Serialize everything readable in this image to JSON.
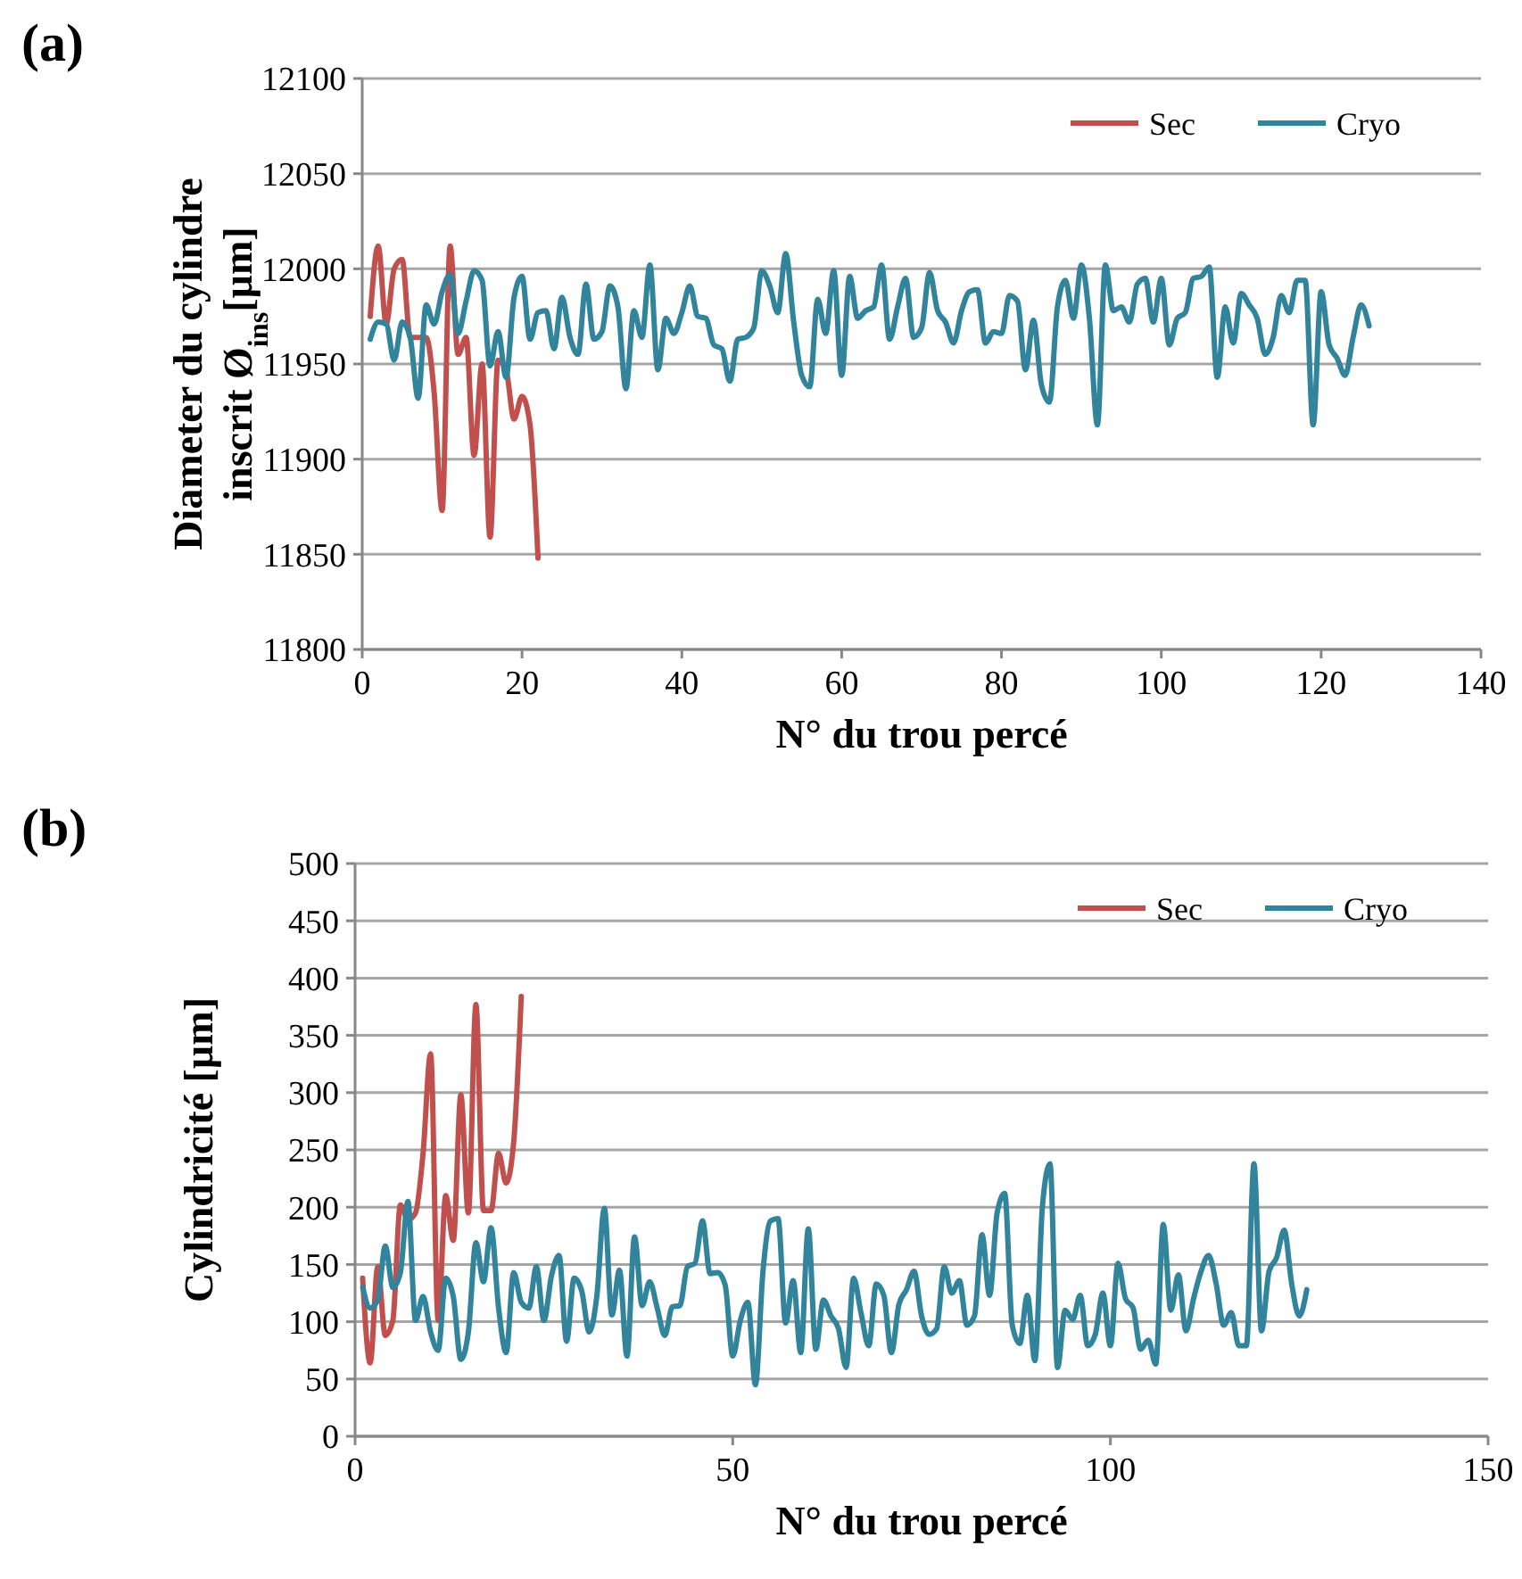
{
  "chart_data": [
    {
      "type": "line",
      "title": "(a)",
      "xlabel": "N° du trou percé",
      "ylabel": "Diameter du cylindre\ninscrit Ø$_{ins}$[µm]",
      "xlim": [
        0,
        140
      ],
      "xticks": [
        0,
        20,
        40,
        60,
        80,
        100,
        120,
        140
      ],
      "ylim": [
        11800,
        12100
      ],
      "yticks": [
        11800,
        11850,
        11900,
        11950,
        12000,
        12050,
        12100
      ],
      "grid": "y",
      "legend": "top right",
      "marker": "none",
      "series": [
        {
          "name": "Sec",
          "color": "#c0504d",
          "x": [
            1,
            2,
            3,
            4,
            5,
            6,
            7,
            8,
            9,
            10,
            11,
            12,
            13,
            14,
            15,
            16,
            17,
            18,
            19,
            20,
            21,
            22
          ],
          "values": [
            11975,
            12012,
            11971,
            12000,
            12005,
            11964,
            11964,
            11964,
            11935,
            11873,
            12012,
            11955,
            11964,
            11902,
            11950,
            11859,
            11952,
            11947,
            11921,
            11933,
            11918,
            11848
          ]
        },
        {
          "name": "Cryo",
          "color": "#31849b",
          "x": [
            1,
            2,
            3,
            4,
            5,
            6,
            7,
            8,
            9,
            10,
            11,
            12,
            13,
            14,
            15,
            16,
            17,
            18,
            19,
            20,
            21,
            22,
            23,
            24,
            25,
            26,
            27,
            28,
            29,
            30,
            31,
            32,
            33,
            34,
            35,
            36,
            37,
            38,
            39,
            40,
            41,
            42,
            43,
            44,
            45,
            46,
            47,
            48,
            49,
            50,
            51,
            52,
            53,
            54,
            55,
            56,
            57,
            58,
            59,
            60,
            61,
            62,
            63,
            64,
            65,
            66,
            67,
            68,
            69,
            70,
            71,
            72,
            73,
            74,
            75,
            76,
            77,
            78,
            79,
            80,
            81,
            82,
            83,
            84,
            85,
            86,
            87,
            88,
            89,
            90,
            91,
            92,
            93,
            94,
            95,
            96,
            97,
            98,
            99,
            100,
            101,
            102,
            103,
            104,
            105,
            106,
            107,
            108,
            109,
            110,
            111,
            112,
            113,
            114,
            115,
            116,
            117,
            118,
            119,
            120,
            121,
            122,
            123,
            124,
            125,
            126
          ],
          "values": [
            11963,
            11972,
            11971,
            11952,
            11972,
            11964,
            11932,
            11981,
            11971,
            11988,
            11997,
            11966,
            11983,
            11999,
            11994,
            11949,
            11967,
            11943,
            11985,
            11996,
            11963,
            11977,
            11978,
            11958,
            11985,
            11964,
            11955,
            11992,
            11963,
            11967,
            11991,
            11980,
            11937,
            11978,
            11964,
            12002,
            11947,
            11974,
            11966,
            11977,
            11991,
            11975,
            11974,
            11960,
            11958,
            11941,
            11963,
            11964,
            11969,
            11999,
            11991,
            11977,
            12008,
            11972,
            11944,
            11938,
            11984,
            11966,
            11999,
            11944,
            11996,
            11974,
            11978,
            11980,
            12002,
            11963,
            11980,
            11995,
            11964,
            11969,
            11998,
            11978,
            11972,
            11961,
            11978,
            11988,
            11989,
            11961,
            11967,
            11966,
            11986,
            11983,
            11947,
            11973,
            11939,
            11930,
            11980,
            11994,
            11974,
            12002,
            11974,
            11918,
            12002,
            11978,
            11980,
            11972,
            11992,
            11995,
            11972,
            11995,
            11960,
            11974,
            11977,
            11995,
            11996,
            12001,
            11943,
            11980,
            11961,
            11987,
            11981,
            11974,
            11955,
            11964,
            11986,
            11977,
            11994,
            11994,
            11918,
            11988,
            11960,
            11953,
            11944,
            11964,
            11981,
            11970
          ]
        }
      ]
    },
    {
      "type": "line",
      "title": "(b)",
      "xlabel": "N° du trou percé",
      "ylabel": "Cylindricité [µm]",
      "xlim": [
        0,
        150
      ],
      "xticks": [
        0,
        50,
        100,
        150
      ],
      "ylim": [
        0,
        500
      ],
      "yticks": [
        0,
        50,
        100,
        150,
        200,
        250,
        300,
        350,
        400,
        450,
        500
      ],
      "grid": "y",
      "legend": "top right",
      "marker": "none",
      "series": [
        {
          "name": "Sec",
          "color": "#c0504d",
          "x": [
            1,
            2,
            3,
            4,
            5,
            6,
            7,
            8,
            9,
            10,
            11,
            12,
            13,
            14,
            15,
            16,
            17,
            18,
            19,
            20,
            21,
            22
          ],
          "values": [
            138,
            64,
            148,
            88,
            101,
            202,
            189,
            195,
            247,
            334,
            101,
            210,
            171,
            298,
            195,
            377,
            197,
            197,
            247,
            221,
            257,
            384
          ]
        },
        {
          "name": "Cryo",
          "color": "#31849b",
          "x": [
            1,
            2,
            3,
            4,
            5,
            6,
            7,
            8,
            9,
            10,
            11,
            12,
            13,
            14,
            15,
            16,
            17,
            18,
            19,
            20,
            21,
            22,
            23,
            24,
            25,
            26,
            27,
            28,
            29,
            30,
            31,
            32,
            33,
            34,
            35,
            36,
            37,
            38,
            39,
            40,
            41,
            42,
            43,
            44,
            45,
            46,
            47,
            48,
            49,
            50,
            51,
            52,
            53,
            54,
            55,
            56,
            57,
            58,
            59,
            60,
            61,
            62,
            63,
            64,
            65,
            66,
            67,
            68,
            69,
            70,
            71,
            72,
            73,
            74,
            75,
            76,
            77,
            78,
            79,
            80,
            81,
            82,
            83,
            84,
            85,
            86,
            87,
            88,
            89,
            90,
            91,
            92,
            93,
            94,
            95,
            96,
            97,
            98,
            99,
            100,
            101,
            102,
            103,
            104,
            105,
            106,
            107,
            108,
            109,
            110,
            111,
            112,
            113,
            114,
            115,
            116,
            117,
            118,
            119,
            120,
            121,
            122,
            123,
            124,
            125,
            126
          ],
          "values": [
            130,
            112,
            119,
            166,
            130,
            143,
            205,
            101,
            122,
            91,
            75,
            138,
            122,
            67,
            91,
            169,
            135,
            182,
            112,
            73,
            143,
            117,
            112,
            148,
            101,
            140,
            158,
            83,
            138,
            127,
            91,
            122,
            199,
            106,
            145,
            70,
            174,
            114,
            135,
            112,
            88,
            113,
            114,
            148,
            151,
            188,
            142,
            143,
            132,
            70,
            101,
            117,
            45,
            144,
            188,
            190,
            99,
            136,
            73,
            181,
            76,
            119,
            105,
            94,
            60,
            138,
            107,
            79,
            133,
            123,
            73,
            115,
            128,
            144,
            105,
            89,
            94,
            148,
            125,
            136,
            97,
            105,
            176,
            123,
            195,
            212,
            97,
            81,
            123,
            66,
            201,
            238,
            60,
            110,
            102,
            123,
            79,
            89,
            125,
            79,
            151,
            120,
            112,
            76,
            84,
            63,
            185,
            110,
            141,
            92,
            120,
            144,
            158,
            133,
            97,
            108,
            79,
            79,
            238,
            92,
            144,
            156,
            180,
            133,
            105,
            128
          ]
        }
      ]
    }
  ]
}
